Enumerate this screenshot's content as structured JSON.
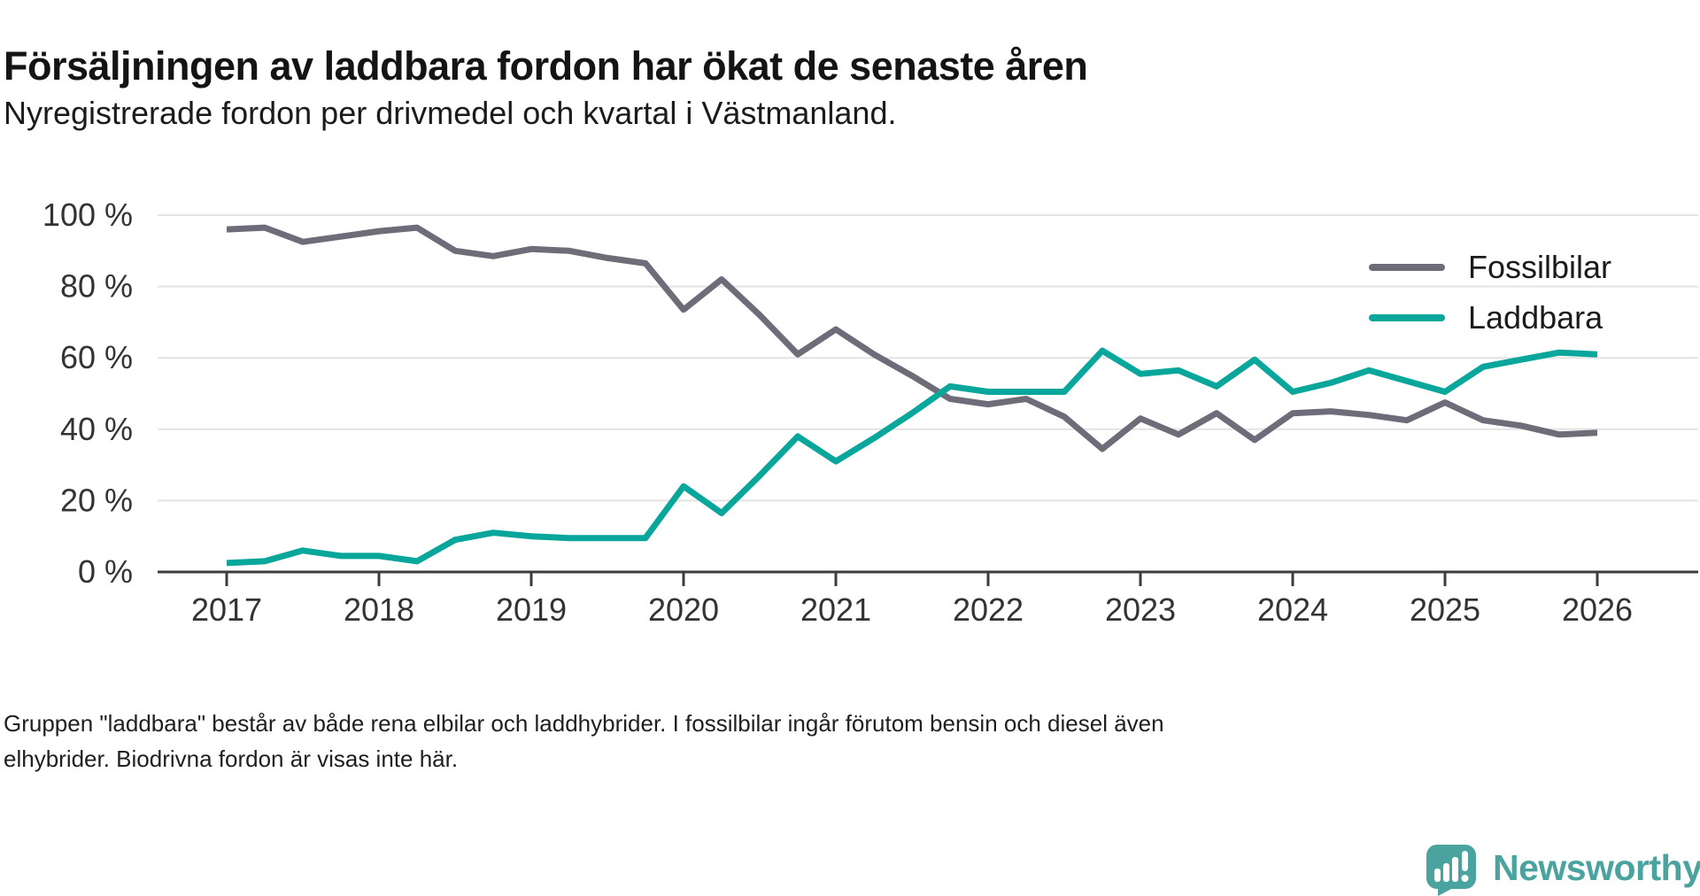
{
  "header": {
    "title": "Försäljningen av laddbara fordon har ökat de senaste åren",
    "subtitle": "Nyregistrerade fordon per drivmedel och kvartal i Västmanland."
  },
  "legend": {
    "items": [
      {
        "label": "Fossilbilar",
        "color": "#6F6B78"
      },
      {
        "label": "Laddbara",
        "color": "#09A69C"
      }
    ]
  },
  "footer": {
    "line1": "Gruppen \"laddbara\" består av både rena elbilar och laddhybrider. I fossilbilar ingår förutom bensin och diesel även",
    "line2": "elhybrider. Biodrivna fordon är visas inte här."
  },
  "logo": {
    "name": "Newsworthy",
    "icon": "newsworthy-speech-bubble-bar-chart-icon",
    "color": "#4AA39E"
  },
  "chart_data": {
    "type": "line",
    "title": "Försäljningen av laddbara fordon har ökat de senaste åren",
    "subtitle": "Nyregistrerade fordon per drivmedel och kvartal i Västmanland.",
    "x": [
      "2017 Q1",
      "2017 Q2",
      "2017 Q3",
      "2017 Q4",
      "2018 Q1",
      "2018 Q2",
      "2018 Q3",
      "2018 Q4",
      "2019 Q1",
      "2019 Q2",
      "2019 Q3",
      "2019 Q4",
      "2020 Q1",
      "2020 Q2",
      "2020 Q3",
      "2020 Q4",
      "2021 Q1",
      "2021 Q2",
      "2021 Q3",
      "2021 Q4",
      "2022 Q1",
      "2022 Q2",
      "2022 Q3",
      "2022 Q4",
      "2023 Q1",
      "2023 Q2",
      "2023 Q3",
      "2023 Q4",
      "2024 Q1",
      "2024 Q2",
      "2024 Q3",
      "2024 Q4",
      "2025 Q1",
      "2025 Q2",
      "2025 Q3",
      "2025 Q4",
      "2026 Q1"
    ],
    "x_tick_labels": [
      "2017",
      "2018",
      "2019",
      "2020",
      "2021",
      "2022",
      "2023",
      "2024",
      "2025",
      "2026"
    ],
    "x_tick_indices": [
      0,
      4,
      8,
      12,
      16,
      20,
      24,
      28,
      32,
      36
    ],
    "ylim": [
      0,
      100
    ],
    "y_ticks": [
      0,
      20,
      40,
      60,
      80,
      100
    ],
    "y_tick_labels": [
      "0 %",
      "20 %",
      "40 %",
      "60 %",
      "80 %",
      "100 %"
    ],
    "grid": "horizontal",
    "legend_position": "top-right",
    "series": [
      {
        "name": "Fossilbilar",
        "color": "#6F6B78",
        "values": [
          96,
          96.5,
          92.5,
          94,
          95.5,
          96.5,
          90,
          88.5,
          90.5,
          90,
          88,
          86.5,
          73.5,
          82,
          72,
          61,
          68,
          61,
          55,
          48.5,
          47,
          48.5,
          43.5,
          34.5,
          43,
          38.5,
          44.5,
          37,
          44.5,
          45,
          44,
          42.5,
          47.5,
          42.5,
          41,
          38.5,
          39
        ]
      },
      {
        "name": "Laddbara",
        "color": "#09A69C",
        "values": [
          2.5,
          3,
          6,
          4.5,
          4.5,
          3,
          9,
          11,
          10,
          9.5,
          9.5,
          9.5,
          24,
          16.5,
          27,
          38,
          31,
          37.5,
          44.5,
          52,
          50.5,
          50.5,
          50.5,
          62,
          55.5,
          56.5,
          52,
          59.5,
          50.5,
          53,
          56.5,
          53.5,
          50.5,
          57.5,
          59.5,
          61.5,
          61
        ]
      }
    ]
  }
}
